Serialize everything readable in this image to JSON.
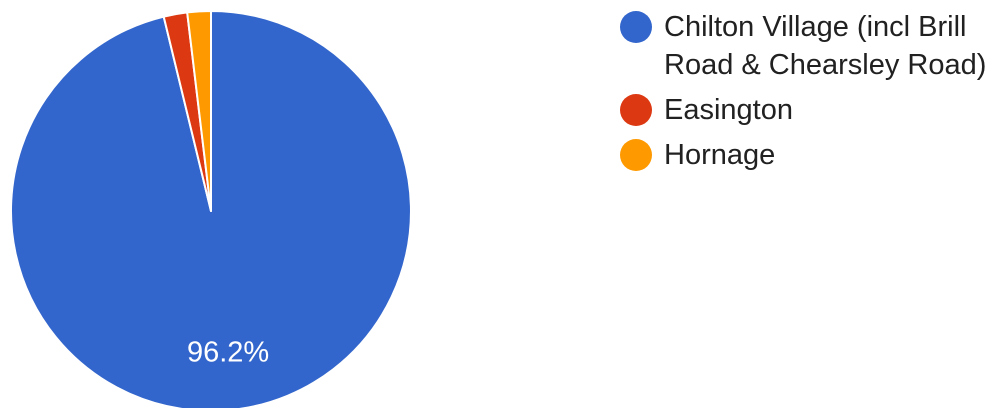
{
  "chart_data": {
    "type": "pie",
    "title": "",
    "categories": [
      "Chilton Village (incl Brill Road & Chearsley Road)",
      "Easington",
      "Hornage"
    ],
    "values": [
      96.2,
      1.9,
      1.9
    ],
    "colors": [
      "#3366cc",
      "#dc3912",
      "#ff9900"
    ],
    "data_labels": [
      "96.2%",
      "",
      ""
    ],
    "start_angle_deg": 0,
    "direction": "clockwise",
    "legend_position": "right"
  }
}
